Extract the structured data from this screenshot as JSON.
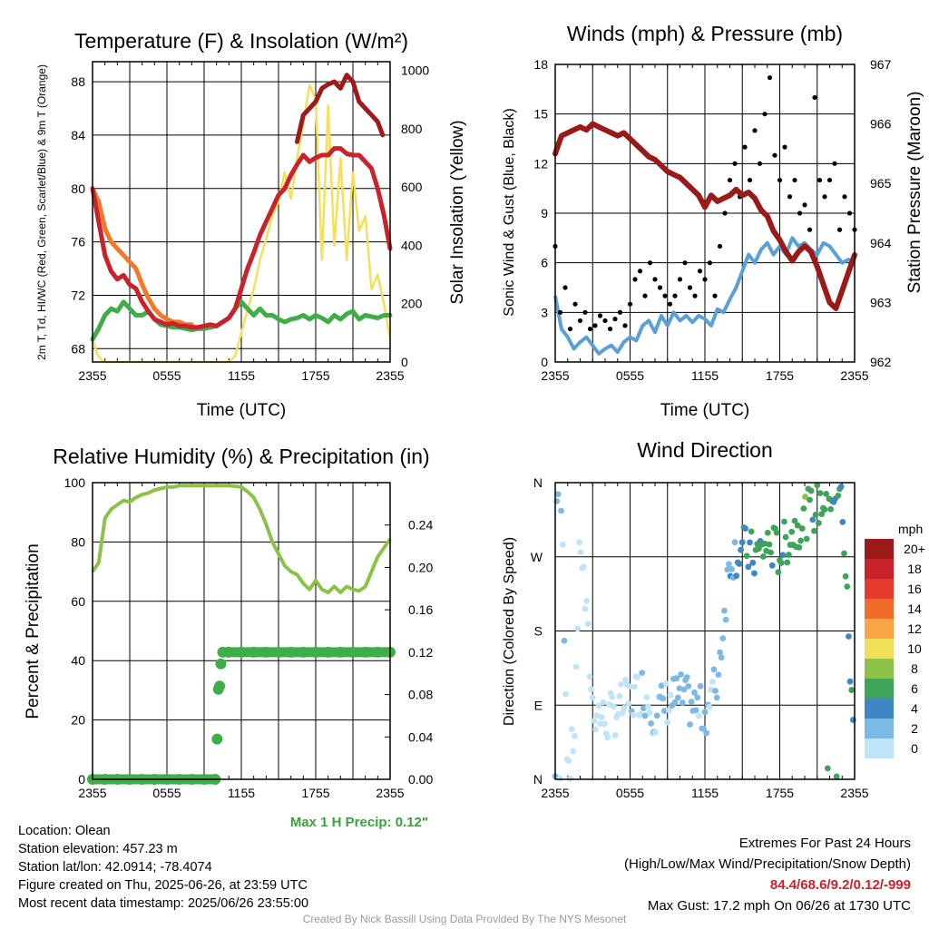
{
  "colors": {
    "temp": "#c8222b",
    "dew": "#3fae49",
    "hiwc": "#9e1a1a",
    "t9": "#f07a2a",
    "solar": "#f6df5a",
    "wind": "#5aa0d8",
    "gust": "#000000",
    "pressure": "#9a1a1a",
    "rh": "#8cc24a",
    "precip": "#3fae49",
    "maxprecip_text": "#3aa23a",
    "extremes_text": "#c8222b"
  },
  "chart_data": [
    {
      "type": "line",
      "title": "Temperature (F) & Insolation (W/m²)",
      "xlabel": "Time (UTC)",
      "ylabel": "2m T, Td, HI/WC (Red, Green, Scarlet/Blue) & 9m T (Orange)",
      "y2label": "Solar Insolation (Yellow)",
      "x_ticks": [
        "2355",
        "0555",
        "1155",
        "1755",
        "2355"
      ],
      "y_ticks": [
        68,
        72,
        76,
        80,
        84,
        88
      ],
      "y2_ticks": [
        0,
        200,
        400,
        600,
        800,
        1000
      ],
      "ylim": [
        67,
        89.5
      ],
      "y2lim": [
        0,
        1030
      ],
      "xlim": [
        0,
        24
      ],
      "series": [
        {
          "name": "2m T",
          "color": "temp",
          "x": [
            0,
            0.5,
            1,
            1.5,
            2,
            2.5,
            3,
            3.5,
            4,
            4.5,
            5,
            5.5,
            6,
            6.5,
            7,
            7.5,
            8,
            8.5,
            9,
            9.5,
            10,
            10.5,
            11,
            11.5,
            12,
            12.5,
            13,
            13.5,
            14,
            14.5,
            15,
            15.5,
            16,
            16.5,
            17,
            17.5,
            18,
            18.5,
            19,
            19.5,
            20,
            20.5,
            21,
            21.5,
            22,
            22.5,
            23,
            23.5,
            24
          ],
          "y": [
            80,
            77.5,
            75,
            73.8,
            73.2,
            73.5,
            72.8,
            72.5,
            71.5,
            70.8,
            70.2,
            70,
            69.8,
            69.9,
            69.7,
            69.7,
            69.6,
            69.6,
            69.7,
            69.8,
            69.7,
            70,
            70.3,
            71,
            72.5,
            74,
            75.2,
            76.5,
            77.5,
            78.5,
            79.5,
            80,
            81,
            81.8,
            82.5,
            82,
            82.3,
            82.5,
            82.5,
            83,
            83,
            82.6,
            82.5,
            82.5,
            82,
            81.5,
            80,
            78,
            75.5
          ]
        },
        {
          "name": "Td",
          "color": "dew",
          "x": [
            0,
            0.5,
            1,
            1.5,
            2,
            2.5,
            3,
            3.5,
            4,
            4.5,
            5,
            5.5,
            6,
            6.5,
            7,
            7.5,
            8,
            8.5,
            9,
            9.5,
            10,
            10.5,
            11,
            11.5,
            12,
            12.5,
            13,
            13.5,
            14,
            14.5,
            15,
            15.5,
            16,
            16.5,
            17,
            17.5,
            18,
            18.5,
            19,
            19.5,
            20,
            20.5,
            21,
            21.5,
            22,
            22.5,
            23,
            23.5,
            24
          ],
          "y": [
            68.7,
            69.5,
            70.5,
            71,
            70.8,
            71.5,
            71,
            70.5,
            70.5,
            70.8,
            70.2,
            69.8,
            69.7,
            69.6,
            69.6,
            69.5,
            69.4,
            69.5,
            69.5,
            69.6,
            69.7,
            70,
            70.3,
            71,
            71.5,
            71,
            70.5,
            71,
            70.5,
            70.5,
            70.2,
            70,
            70.2,
            70.3,
            70.5,
            70.2,
            70.5,
            70.3,
            70,
            70.5,
            70.2,
            70.6,
            70.8,
            70.2,
            70.5,
            70.4,
            70.3,
            70.5,
            70.5
          ]
        },
        {
          "name": "HI/WC",
          "color": "hiwc",
          "x": [
            16.5,
            17,
            17.5,
            18,
            18.5,
            19,
            19.5,
            20,
            20.5,
            21,
            21.5,
            22,
            22.5,
            23,
            23.4
          ],
          "y": [
            83.5,
            85.5,
            86,
            86.5,
            87.5,
            87.8,
            88,
            87.5,
            88.5,
            88,
            86.5,
            86,
            85.5,
            85,
            84
          ]
        },
        {
          "name": "9m T",
          "color": "t9",
          "x": [
            0,
            0.5,
            1,
            1.5,
            2,
            2.5,
            3,
            3.5,
            4,
            4.5,
            5,
            5.5,
            6,
            6.5,
            7,
            7.5,
            8
          ],
          "y": [
            80,
            79,
            77,
            76,
            75.5,
            75,
            74.5,
            74,
            72.8,
            71.8,
            71,
            70.5,
            70.2,
            70,
            70,
            69.8,
            69.8
          ]
        },
        {
          "name": "Solar",
          "color": "solar",
          "axis": "y2",
          "x": [
            0,
            0.4,
            0.8,
            1,
            2,
            4,
            6,
            8,
            10,
            11,
            11.5,
            12,
            12.5,
            13,
            13.5,
            14,
            14.5,
            15,
            15.5,
            16,
            16.5,
            17,
            17.5,
            18,
            18.5,
            19,
            19.5,
            20,
            20.5,
            21,
            21.5,
            22,
            22.5,
            23,
            23.5,
            24
          ],
          "y": [
            80,
            25,
            3,
            0,
            0,
            0,
            0,
            0,
            0,
            0,
            20,
            100,
            180,
            250,
            350,
            420,
            500,
            550,
            650,
            560,
            700,
            820,
            950,
            900,
            350,
            880,
            400,
            700,
            350,
            650,
            450,
            500,
            250,
            300,
            200,
            80
          ]
        }
      ]
    },
    {
      "type": "line",
      "title": "Winds (mph) & Pressure (mb)",
      "xlabel": "Time (UTC)",
      "ylabel": "Sonic Wind & Gust (Blue, Black)",
      "y2label": "Station Pressure (Maroon)",
      "x_ticks": [
        "2355",
        "0555",
        "1155",
        "1755",
        "2355"
      ],
      "y_ticks": [
        0,
        3,
        6,
        9,
        12,
        15,
        18
      ],
      "y2_ticks": [
        962,
        963,
        964,
        965,
        966,
        967
      ],
      "ylim": [
        0,
        18
      ],
      "y2lim": [
        962,
        967
      ],
      "xlim": [
        0,
        24
      ],
      "series": [
        {
          "name": "Sonic Wind",
          "color": "wind",
          "x": [
            0,
            0.5,
            1,
            1.5,
            2,
            2.5,
            3,
            3.5,
            4,
            4.5,
            5,
            5.5,
            6,
            6.5,
            7,
            7.5,
            8,
            8.5,
            9,
            9.5,
            10,
            10.5,
            11,
            11.5,
            12,
            12.5,
            13,
            13.5,
            14,
            14.5,
            15,
            15.5,
            16,
            16.5,
            17,
            17.5,
            18,
            18.5,
            19,
            19.5,
            20,
            20.5,
            21,
            21.5,
            22,
            22.5,
            23,
            23.5,
            24
          ],
          "y": [
            4,
            2,
            1.5,
            0.8,
            1.2,
            1.5,
            1,
            0.5,
            0.8,
            1,
            0.6,
            1.2,
            1.5,
            1.3,
            2.2,
            2.5,
            1.8,
            2.8,
            2.2,
            3,
            2.5,
            2.8,
            2.4,
            2.8,
            2.6,
            2.2,
            3.2,
            3,
            3.8,
            4.5,
            5.5,
            6.5,
            6,
            6.8,
            7.2,
            6.5,
            7,
            6.5,
            7.5,
            7,
            7.2,
            6.8,
            6.5,
            7.2,
            7,
            6.5,
            6,
            6.2,
            6
          ]
        },
        {
          "name": "Gust",
          "color": "gust",
          "style": "points",
          "x": [
            0,
            0.4,
            0.8,
            1.2,
            1.6,
            2,
            2.4,
            2.8,
            3.2,
            3.6,
            4,
            4.4,
            4.8,
            5.2,
            5.6,
            6,
            6.4,
            6.8,
            7.2,
            7.6,
            8,
            8.4,
            8.8,
            9.2,
            9.6,
            10,
            10.4,
            10.8,
            11.2,
            11.6,
            12,
            12.4,
            12.8,
            13.2,
            13.6,
            14,
            14.4,
            14.8,
            15.2,
            15.6,
            16,
            16.4,
            16.8,
            17.2,
            17.6,
            18,
            18.4,
            18.8,
            19.2,
            19.6,
            20,
            20.4,
            20.8,
            21.2,
            21.6,
            22,
            22.4,
            22.8,
            23.2,
            23.6,
            24
          ],
          "y": [
            7,
            3,
            4.5,
            2,
            3.5,
            2.5,
            3,
            2,
            2.2,
            2.8,
            2.5,
            2,
            2.6,
            3,
            2.2,
            3.5,
            5,
            5.5,
            4,
            6,
            5,
            4.5,
            4,
            3.5,
            4,
            5,
            6,
            4.5,
            4,
            5.5,
            5,
            6,
            4,
            7,
            9,
            11,
            12,
            10,
            13,
            11,
            14,
            12,
            15,
            17.2,
            12.5,
            11,
            13,
            10,
            11,
            9,
            9.5,
            8,
            16,
            11,
            10,
            11,
            12,
            8,
            10,
            9,
            8
          ]
        },
        {
          "name": "Pressure",
          "color": "pressure",
          "axis": "y2",
          "x": [
            0,
            0.5,
            1,
            1.5,
            2,
            2.5,
            3,
            3.5,
            4,
            4.5,
            5,
            5.5,
            6,
            6.5,
            7,
            7.5,
            8,
            8.5,
            9,
            9.5,
            10,
            10.5,
            11,
            11.5,
            12,
            12.5,
            13,
            13.5,
            14,
            14.5,
            15,
            15.5,
            16,
            16.5,
            17,
            17.5,
            18,
            18.5,
            19,
            19.5,
            20,
            20.5,
            21,
            21.5,
            22,
            22.5,
            23,
            23.5,
            24
          ],
          "y": [
            965.5,
            965.8,
            965.85,
            965.9,
            965.95,
            965.9,
            966,
            965.95,
            965.9,
            965.85,
            965.8,
            965.85,
            965.75,
            965.65,
            965.55,
            965.45,
            965.4,
            965.3,
            965.2,
            965.15,
            965.1,
            965,
            964.9,
            964.8,
            964.6,
            964.8,
            964.7,
            964.75,
            964.8,
            964.9,
            964.8,
            964.85,
            964.75,
            964.55,
            964.45,
            964.2,
            964.05,
            963.85,
            963.7,
            963.85,
            963.95,
            963.85,
            963.6,
            963.3,
            963.0,
            962.9,
            963.2,
            963.5,
            963.8
          ]
        }
      ]
    },
    {
      "type": "line",
      "title": "Relative Humidity (%) & Precipitation (in)",
      "ylabel": "Percent & Precipitation",
      "x_ticks": [
        "2355",
        "0555",
        "1155",
        "1755",
        "2355"
      ],
      "y_ticks": [
        0,
        20,
        40,
        60,
        80,
        100
      ],
      "y2_ticks": [
        "0.00",
        "0.04",
        "0.08",
        "0.12",
        "0.16",
        "0.20",
        "0.24"
      ],
      "ylim": [
        0,
        100
      ],
      "y2lim": [
        0,
        0.28
      ],
      "xlim": [
        0,
        24
      ],
      "series": [
        {
          "name": "RH",
          "color": "rh",
          "x": [
            0,
            0.5,
            1,
            1.5,
            2,
            2.5,
            3,
            3.5,
            4,
            4.5,
            5,
            5.5,
            6,
            6.5,
            7,
            7.5,
            8,
            8.5,
            9,
            9.5,
            10,
            10.5,
            11,
            11.5,
            12,
            12.5,
            13,
            13.5,
            14,
            14.5,
            15,
            15.5,
            16,
            16.5,
            17,
            17.5,
            18,
            18.5,
            19,
            19.5,
            20,
            20.5,
            21,
            21.5,
            22,
            22.5,
            23,
            23.5,
            24
          ],
          "y": [
            70,
            73,
            88,
            91,
            92.5,
            94,
            93.5,
            95,
            96,
            96.5,
            97.5,
            98,
            98.5,
            98.5,
            99,
            99,
            99,
            99,
            99,
            99,
            99,
            99,
            99,
            98.8,
            98.5,
            97,
            95,
            91,
            86,
            80,
            76,
            72,
            70,
            69,
            66,
            64,
            67,
            64,
            63,
            65,
            63,
            65,
            64,
            63.5,
            65,
            70,
            75,
            78,
            81
          ]
        },
        {
          "name": "Precip",
          "color": "precip",
          "axis": "y2",
          "style": "markers",
          "x": [
            0,
            1,
            2,
            3,
            4,
            5,
            6,
            7,
            8,
            9,
            9.9,
            10.05,
            10.15,
            10.25,
            10.35,
            10.5,
            11,
            12,
            13,
            14,
            15,
            16,
            17,
            18,
            19,
            20,
            21,
            22,
            23,
            24
          ],
          "y": [
            0,
            0,
            0,
            0,
            0,
            0,
            0,
            0,
            0,
            0,
            0,
            0.038,
            0.085,
            0.088,
            0.109,
            0.12,
            0.12,
            0.12,
            0.12,
            0.12,
            0.12,
            0.12,
            0.12,
            0.12,
            0.12,
            0.12,
            0.12,
            0.12,
            0.12,
            0.12
          ]
        }
      ],
      "annotation": "Max 1 H Precip: 0.12\""
    },
    {
      "type": "scatter",
      "title": "Wind Direction",
      "ylabel": "Direction (Colored By Speed)",
      "x_ticks": [
        "2355",
        "0555",
        "1155",
        "1755",
        "2355"
      ],
      "y_ticks": [
        "N",
        "E",
        "S",
        "W",
        "N"
      ],
      "ylim": [
        0,
        360
      ],
      "xlim": [
        0,
        24
      ],
      "legend_title": "mph",
      "legend_labels": [
        "20+",
        "18",
        "16",
        "14",
        "12",
        "10",
        "8",
        "6",
        "4",
        "2",
        "0"
      ],
      "legend_colors": [
        "#9b1b1b",
        "#c8222b",
        "#e33a2e",
        "#f06a2a",
        "#f9a545",
        "#efe05a",
        "#8cc24a",
        "#3fa45a",
        "#3f86c4",
        "#7db9e6",
        "#bfe3f7"
      ]
    }
  ],
  "info_left": [
    "Location: Olean",
    "Station elevation: 457.23 m",
    "Station lat/lon: 42.0914; -78.4074",
    "Figure created on Thu, 2025-06-26, at 23:59 UTC",
    "Most recent data timestamp: 2025/06/26 23:55:00"
  ],
  "info_right": {
    "line1": "Extremes For Past 24 Hours",
    "line2": "(High/Low/Max Wind/Precipitation/Snow Depth)",
    "values": "84.4/68.6/9.2/0.12/-999",
    "gust": "Max Gust: 17.2 mph On 06/26 at 1730 UTC"
  },
  "credit": "Created By Nick Bassill Using Data Provided By The NYS Mesonet"
}
